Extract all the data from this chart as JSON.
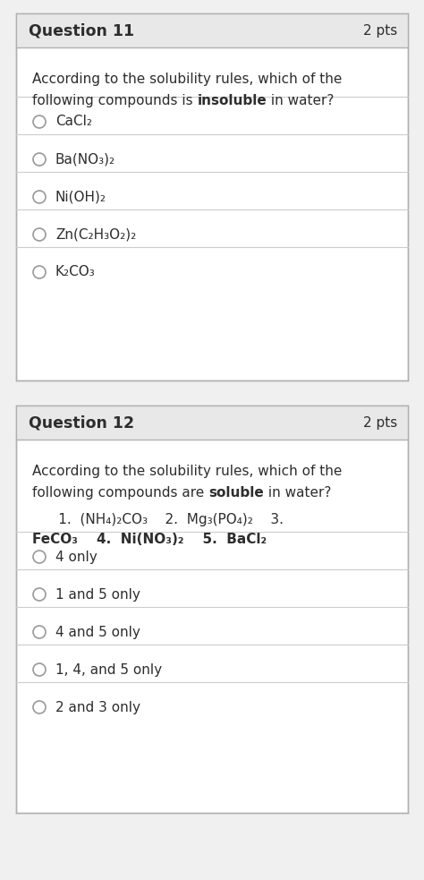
{
  "bg_color": "#f0f0f0",
  "card_bg": "#ffffff",
  "card_border": "#b0b0b0",
  "header_bg": "#e8e8e8",
  "text_color": "#2d2d2d",
  "divider_color": "#cccccc",
  "circle_color": "#999999",
  "q11_title": "Question 11",
  "q11_pts": "2 pts",
  "q11_prompt_line1": "According to the solubility rules, which of the",
  "q11_prompt_line2_normal": "following compounds is ",
  "q11_prompt_line2_bold": "insoluble",
  "q11_prompt_line2_end": " in water?",
  "q11_options": [
    "CaCl₂",
    "Ba(NO₃)₂",
    "Ni(OH)₂",
    "Zn(C₂H₃O₂)₂",
    "K₂CO₃"
  ],
  "q12_title": "Question 12",
  "q12_pts": "2 pts",
  "q12_prompt_line1": "According to the solubility rules, which of the",
  "q12_prompt_line2_normal": "following compounds are ",
  "q12_prompt_line2_bold": "soluble",
  "q12_prompt_line2_end": " in water?",
  "q12_compounds_line1_indent": "      1.  (NH₄)₂CO₃    2.  Mg₃(PO₄)₂    3.",
  "q12_compounds_line2": "FeCO₃    4.  Ni(NO₃)₂    5.  BaCl₂",
  "q12_options": [
    "4 only",
    "1 and 5 only",
    "4 and 5 only",
    "1, 4, and 5 only",
    "2 and 3 only"
  ],
  "fig_width": 4.74,
  "fig_height": 9.83,
  "dpi": 100
}
